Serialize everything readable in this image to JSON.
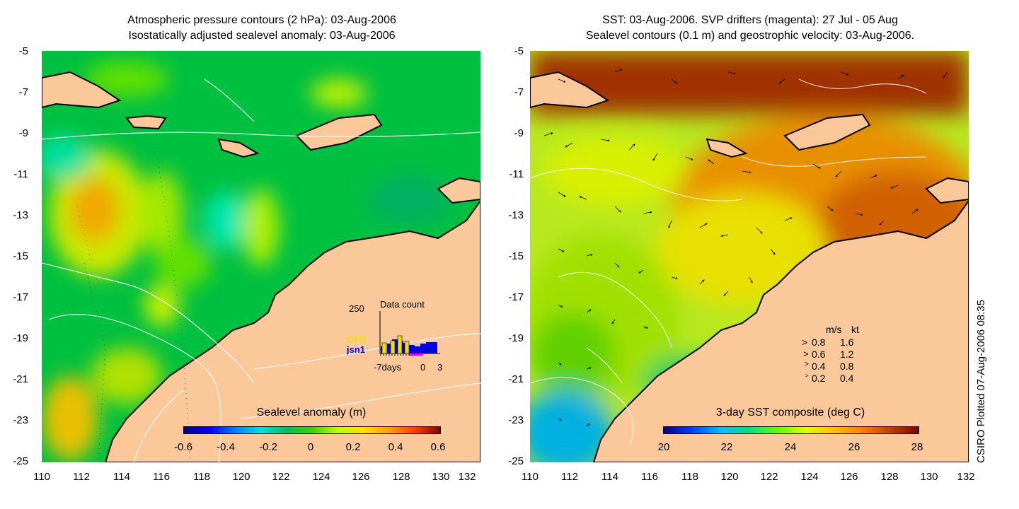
{
  "left_panel": {
    "title_line1": "Atmospheric pressure contours (2 hPa): 03-Aug-2006",
    "title_line2": "Isostatically adjusted sealevel anomaly: 03-Aug-2006",
    "colorbar_title": "Sealevel anomaly (m)",
    "colorbar_labels": [
      "-0.6",
      "-0.4",
      "-0.2",
      "0",
      "0.2",
      "0.4",
      "0.6"
    ],
    "colorbar_range": [
      -0.6,
      0.6
    ],
    "inset": {
      "max_label": "250",
      "title": "Data count",
      "series_gfo": "GFO",
      "series_jsn1": "jsn1",
      "x_labels": [
        "-7days",
        "0",
        "3"
      ]
    }
  },
  "right_panel": {
    "title_line1": "SST: 03-Aug-2006. SVP drifters (magenta): 27 Jul - 05 Aug",
    "title_line2": "Sealevel contours (0.1 m) and geostrophic velocity: 03-Aug-2006.",
    "colorbar_title": "3-day SST composite (deg C)",
    "colorbar_labels": [
      "20",
      "22",
      "24",
      "26",
      "28"
    ],
    "colorbar_range": [
      20,
      28
    ],
    "legend": {
      "header_ms": "m/s",
      "header_kt": "kt",
      "rows": [
        {
          "ms": "0.8",
          "kt": "1.6"
        },
        {
          "ms": "0.6",
          "kt": "1.2"
        },
        {
          "ms": "0.4",
          "kt": "0.8"
        },
        {
          "ms": "0.2",
          "kt": "0.4"
        }
      ]
    }
  },
  "axes": {
    "lat_labels": [
      "-5",
      "-7",
      "-9",
      "-11",
      "-13",
      "-15",
      "-17",
      "-19",
      "-21",
      "-23",
      "-25"
    ],
    "lon_labels": [
      "110",
      "112",
      "114",
      "116",
      "118",
      "120",
      "122",
      "124",
      "126",
      "128",
      "130",
      "132"
    ],
    "lat_range": [
      -25,
      -5
    ],
    "lon_range": [
      110,
      132
    ]
  },
  "credit": "CSIRO Plotted 07-Aug-2006 08:35",
  "colors": {
    "land": "#fbc89a",
    "coast": "#000000",
    "sla_palette": [
      "#00007f",
      "#0000ff",
      "#00c0ff",
      "#00e0c0",
      "#00c040",
      "#40d020",
      "#c0ff00",
      "#ffe000",
      "#ff8000",
      "#ff0000",
      "#800000"
    ],
    "sst_palette": [
      "#00007f",
      "#0040ff",
      "#00c0ff",
      "#00e080",
      "#60ff00",
      "#e0ff00",
      "#ffc000",
      "#ff8000",
      "#c04000",
      "#800000"
    ]
  }
}
